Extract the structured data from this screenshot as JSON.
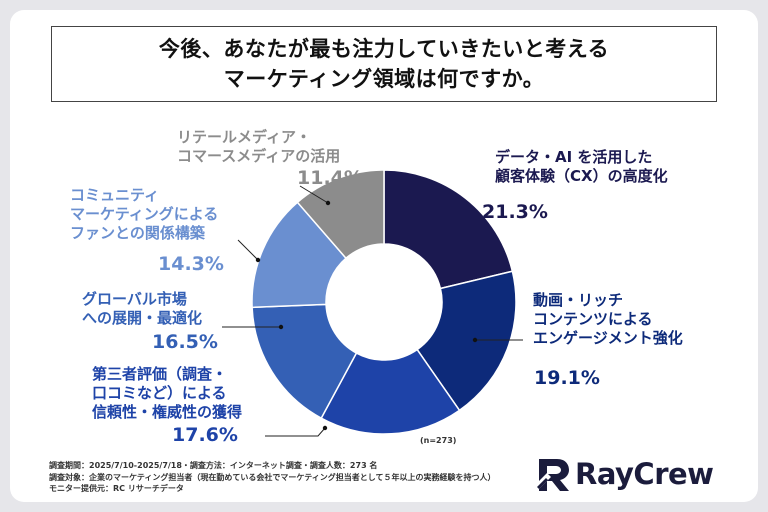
{
  "title": {
    "line1": "今後、あなたが最も注力していきたいと考える",
    "line2": "マーケティング領域は何ですか。"
  },
  "n_label": "(n=273)",
  "footer": {
    "line1": "調査期間：2025/7/10-2025/7/18・調査方法：インターネット調査・調査人数：273 名",
    "line2": "調査対象：企業のマーケティング担当者（現在勤めている会社でマーケティング担当者として５年以上の実務経験を持つ人）",
    "line3": "モニター提供元：RC リサーチデータ"
  },
  "logo": {
    "text": "RayCrew",
    "icon": "raycrew-logo-mark"
  },
  "chart_data": {
    "type": "pie",
    "variant": "donut",
    "n": 273,
    "categories": [
      "データ・AI を活用した顧客体験（CX）の高度化",
      "動画・リッチコンテンツによるエンゲージメント強化",
      "第三者評価（調査・口コミなど）による信頼性・権威性の獲得",
      "グローバル市場への展開・最適化",
      "コミュニティマーケティングによるファンとの関係構築",
      "リテールメディア・コマースメディアの活用"
    ],
    "values": [
      21.3,
      19.1,
      17.6,
      16.5,
      14.3,
      11.4
    ],
    "value_labels": [
      "21.3%",
      "19.1%",
      "17.6%",
      "16.5%",
      "14.3%",
      "11.4%"
    ],
    "label_lines": [
      [
        "データ・AI を活用した",
        "顧客体験（CX）の高度化"
      ],
      [
        "動画・リッチ",
        "コンテンツによる",
        "エンゲージメント強化"
      ],
      [
        "第三者評価（調査・",
        "口コミなど）による",
        "信頼性・権威性の獲得"
      ],
      [
        "グローバル市場",
        "への展開・最適化"
      ],
      [
        "コミュニティ",
        "マーケティングによる",
        "ファンとの関係構築"
      ],
      [
        "リテールメディア・",
        "コマースメディアの活用"
      ]
    ],
    "colors": [
      "#1b1950",
      "#0d2a7a",
      "#1e43a8",
      "#3460b5",
      "#6a8fd0",
      "#8c8c8c"
    ],
    "label_colors": [
      "#1b1950",
      "#0d2a7a",
      "#1e43a8",
      "#3460b5",
      "#6a8fd0",
      "#8c8c8c"
    ]
  }
}
